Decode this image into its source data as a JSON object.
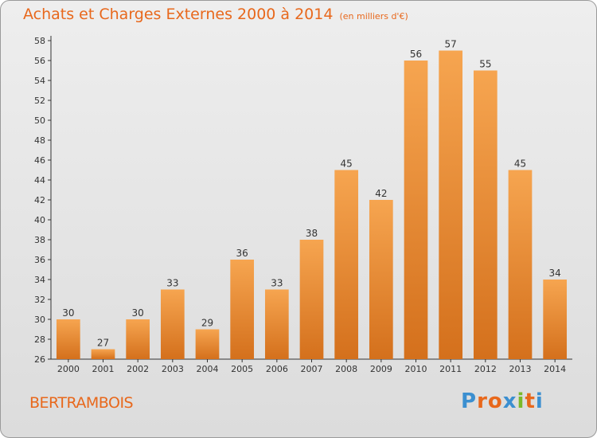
{
  "header": {
    "title": "Achats et Charges Externes 2000 à 2014",
    "subtitle": "(en milliers d'€)"
  },
  "footer": {
    "commune": "BERTRAMBOIS",
    "logo": "Proxiti",
    "logo_colors": [
      "#3b8fd0",
      "#e8681c",
      "#e8681c",
      "#3b8fd0",
      "#7ab929",
      "#e8681c",
      "#3b8fd0"
    ]
  },
  "colors": {
    "bar_light": "#f6a550",
    "bar_dark": "#d4701c",
    "title": "#e8681c"
  },
  "chart_data": {
    "type": "bar",
    "categories": [
      "2000",
      "2001",
      "2002",
      "2003",
      "2004",
      "2005",
      "2006",
      "2007",
      "2008",
      "2009",
      "2010",
      "2011",
      "2012",
      "2013",
      "2014"
    ],
    "values": [
      30,
      27,
      30,
      33,
      29,
      36,
      33,
      38,
      45,
      42,
      56,
      57,
      55,
      45,
      34
    ],
    "ylim": [
      26,
      58
    ],
    "yticks": [
      26,
      28,
      30,
      32,
      34,
      36,
      38,
      40,
      42,
      44,
      46,
      48,
      50,
      52,
      54,
      56,
      58
    ],
    "grid": false,
    "data_labels": true
  }
}
